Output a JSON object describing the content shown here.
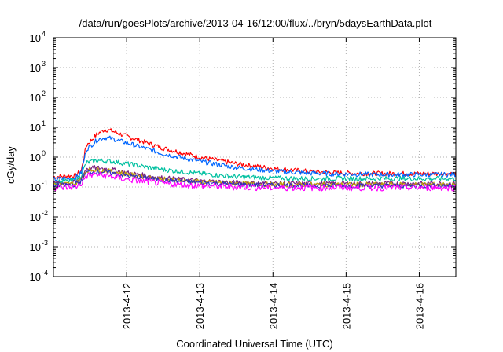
{
  "chart_data": {
    "type": "line",
    "title": "/data/run/goesPlots/archive/2013-04-16/12:00/flux/../bryn/5daysEarthData.plot",
    "xlabel": "Coordinated Universal Time (UTC)",
    "ylabel": "cGy/day",
    "yscale": "log",
    "ylim_exp": [
      -4,
      4
    ],
    "y_ticks": [
      {
        "base": "10",
        "exp": "-4"
      },
      {
        "base": "10",
        "exp": "-3"
      },
      {
        "base": "10",
        "exp": "-2"
      },
      {
        "base": "10",
        "exp": "-1"
      },
      {
        "base": "10",
        "exp": "0"
      },
      {
        "base": "10",
        "exp": "1"
      },
      {
        "base": "10",
        "exp": "2"
      },
      {
        "base": "10",
        "exp": "3"
      },
      {
        "base": "10",
        "exp": "4"
      }
    ],
    "xlim": [
      0.0,
      5.5
    ],
    "x_ticks": [
      {
        "value": 1,
        "label": "2013-4-12"
      },
      {
        "value": 2,
        "label": "2013-4-13"
      },
      {
        "value": 3,
        "label": "2013-4-14"
      },
      {
        "value": 4,
        "label": "2013-4-15"
      },
      {
        "value": 5,
        "label": "2013-4-16"
      }
    ],
    "grid": true,
    "series": [
      {
        "color": "#ff0000",
        "x": [
          0.0,
          0.3,
          0.38,
          0.45,
          0.6,
          0.7,
          0.8,
          1.0,
          1.5,
          2.0,
          2.5,
          3.0,
          3.5,
          4.0,
          4.5,
          5.0,
          5.5
        ],
        "y": [
          0.22,
          0.24,
          0.35,
          2.5,
          6.0,
          8.5,
          7.5,
          5.0,
          2.0,
          1.0,
          0.6,
          0.42,
          0.33,
          0.29,
          0.28,
          0.28,
          0.28
        ]
      },
      {
        "color": "#0066ff",
        "x": [
          0.0,
          0.3,
          0.38,
          0.45,
          0.6,
          0.7,
          0.8,
          1.0,
          1.5,
          2.0,
          2.5,
          3.0,
          3.5,
          4.0,
          4.5,
          5.0,
          5.5
        ],
        "y": [
          0.18,
          0.2,
          0.3,
          1.8,
          3.8,
          4.6,
          4.2,
          3.0,
          1.3,
          0.72,
          0.45,
          0.34,
          0.29,
          0.27,
          0.26,
          0.26,
          0.26
        ]
      },
      {
        "color": "#00c0a0",
        "x": [
          0.0,
          0.3,
          0.38,
          0.45,
          0.6,
          0.8,
          1.0,
          1.5,
          2.0,
          2.5,
          3.0,
          3.5,
          4.0,
          4.5,
          5.0,
          5.5
        ],
        "y": [
          0.15,
          0.16,
          0.25,
          0.65,
          0.78,
          0.72,
          0.6,
          0.38,
          0.28,
          0.22,
          0.2,
          0.19,
          0.19,
          0.19,
          0.19,
          0.19
        ]
      },
      {
        "color": "#7a2080",
        "x": [
          0.0,
          0.3,
          0.38,
          0.45,
          0.6,
          0.8,
          1.0,
          1.5,
          2.0,
          2.5,
          3.0,
          3.5,
          4.0,
          4.5,
          5.0,
          5.5
        ],
        "y": [
          0.13,
          0.14,
          0.2,
          0.42,
          0.44,
          0.38,
          0.3,
          0.2,
          0.16,
          0.14,
          0.13,
          0.13,
          0.13,
          0.13,
          0.13,
          0.13
        ]
      },
      {
        "color": "#c0a000",
        "x": [
          0.0,
          0.3,
          0.38,
          0.45,
          0.6,
          0.8,
          1.0,
          1.5,
          2.0,
          2.5,
          3.0,
          3.5,
          4.0,
          4.5,
          5.0,
          5.5
        ],
        "y": [
          0.12,
          0.13,
          0.18,
          0.36,
          0.38,
          0.33,
          0.27,
          0.18,
          0.15,
          0.13,
          0.12,
          0.12,
          0.12,
          0.12,
          0.12,
          0.12
        ]
      },
      {
        "color": "#3030c0",
        "x": [
          0.0,
          0.3,
          0.38,
          0.45,
          0.6,
          0.8,
          1.0,
          1.5,
          2.0,
          2.5,
          3.0,
          3.5,
          4.0,
          4.5,
          5.0,
          5.5
        ],
        "y": [
          0.11,
          0.12,
          0.16,
          0.31,
          0.33,
          0.29,
          0.24,
          0.17,
          0.14,
          0.12,
          0.115,
          0.11,
          0.11,
          0.11,
          0.11,
          0.11
        ]
      },
      {
        "color": "#ff00ff",
        "x": [
          0.0,
          0.3,
          0.38,
          0.45,
          0.6,
          0.8,
          1.0,
          1.5,
          2.0,
          2.5,
          3.0,
          3.5,
          4.0,
          4.5,
          5.0,
          5.5
        ],
        "y": [
          0.095,
          0.1,
          0.13,
          0.24,
          0.26,
          0.22,
          0.18,
          0.13,
          0.11,
          0.1,
          0.095,
          0.095,
          0.095,
          0.095,
          0.095,
          0.095
        ]
      }
    ]
  }
}
